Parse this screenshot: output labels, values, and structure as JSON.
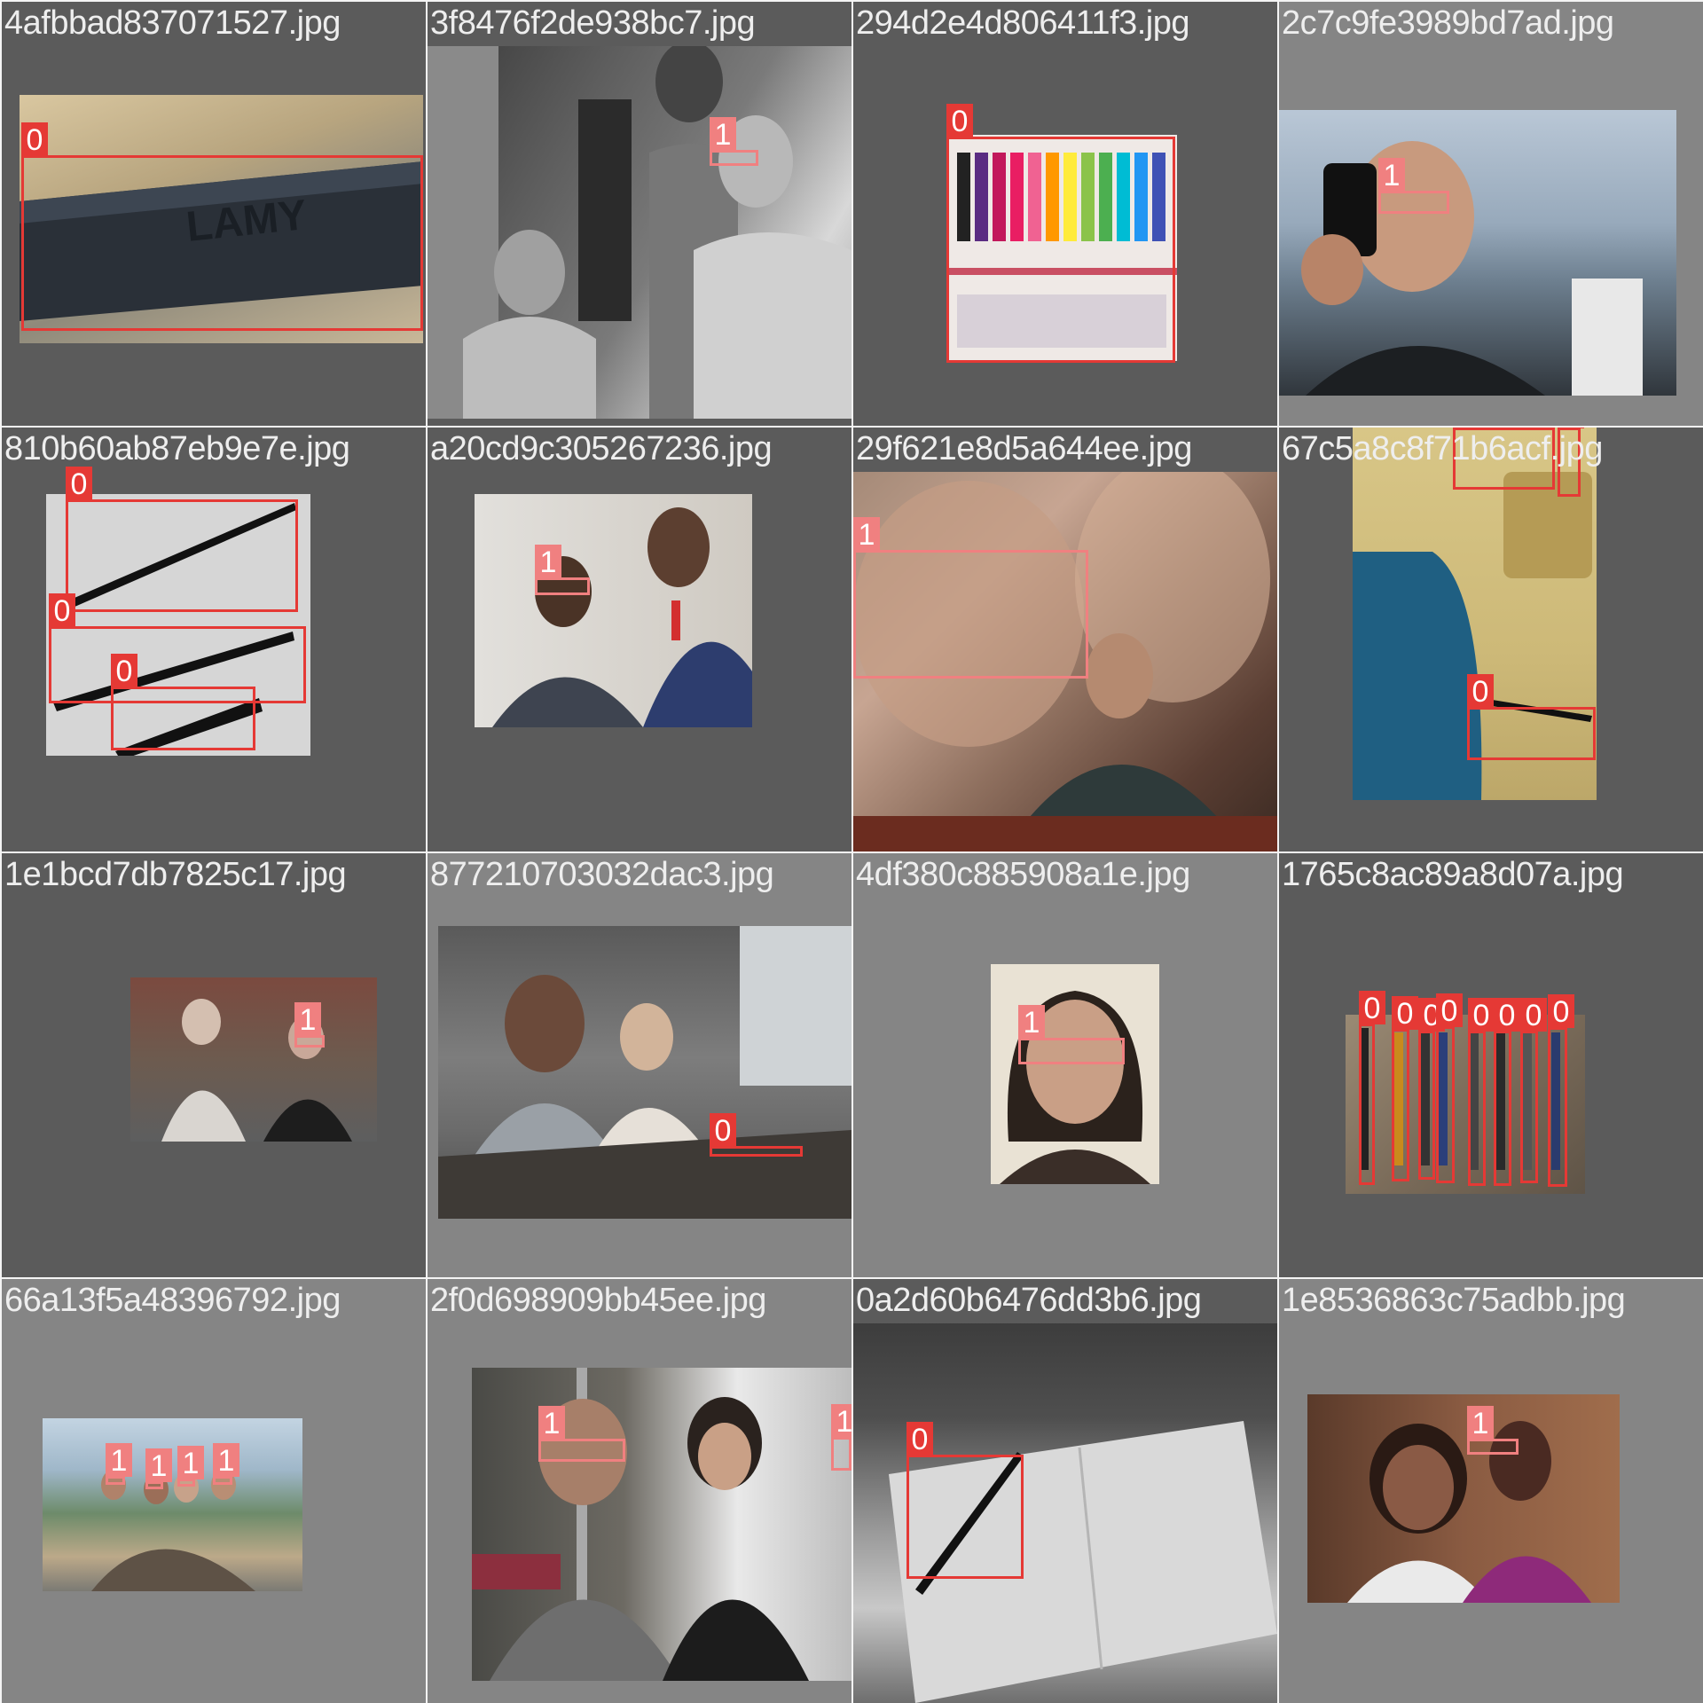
{
  "mosaic": {
    "tiles": [
      {
        "filename": "4afbbad837071527.jpg",
        "labels": [
          "0"
        ]
      },
      {
        "filename": "3f8476f2de938bc7.jpg",
        "labels": [
          "1"
        ]
      },
      {
        "filename": "294d2e4d806411f3.jpg",
        "labels": [
          "0"
        ]
      },
      {
        "filename": "2c7c9fe3989bd7ad.jpg",
        "labels": [
          "1"
        ]
      },
      {
        "filename": "810b60ab87eb9e7e.jpg",
        "labels": [
          "0",
          "0",
          "0"
        ]
      },
      {
        "filename": "a20cd9c305267236.jpg",
        "labels": [
          "1"
        ]
      },
      {
        "filename": "29f621e8d5a644ee.jpg",
        "labels": [
          "1"
        ]
      },
      {
        "filename": "67c5a8c8f71b6acf.jpg",
        "labels": [
          "0",
          "0",
          "0"
        ]
      },
      {
        "filename": "1e1bcd7db7825c17.jpg",
        "labels": [
          "1"
        ]
      },
      {
        "filename": "877210703032dac3.jpg",
        "labels": [
          "0"
        ]
      },
      {
        "filename": "4df380c885908a1e.jpg",
        "labels": [
          "1"
        ]
      },
      {
        "filename": "1765c8ac89a8d07a.jpg",
        "labels": [
          "0",
          "0",
          "0",
          "0",
          "0",
          "0",
          "0",
          "0"
        ]
      },
      {
        "filename": "66a13f5a48396792.jpg",
        "labels": [
          "1",
          "1",
          "1",
          "1"
        ]
      },
      {
        "filename": "2f0d698909bb45ee.jpg",
        "labels": [
          "1",
          "1"
        ]
      },
      {
        "filename": "0a2d60b6476dd3b6.jpg",
        "labels": [
          "0"
        ]
      },
      {
        "filename": "1e8536863c75adbb.jpg",
        "labels": [
          "1"
        ]
      }
    ]
  },
  "colors": {
    "class_0_box": "#e53935",
    "class_1_box": "#f08080",
    "tile_dark": "#5b5b5b",
    "tile_light": "#858585",
    "filename_text": "#eeeeee"
  }
}
